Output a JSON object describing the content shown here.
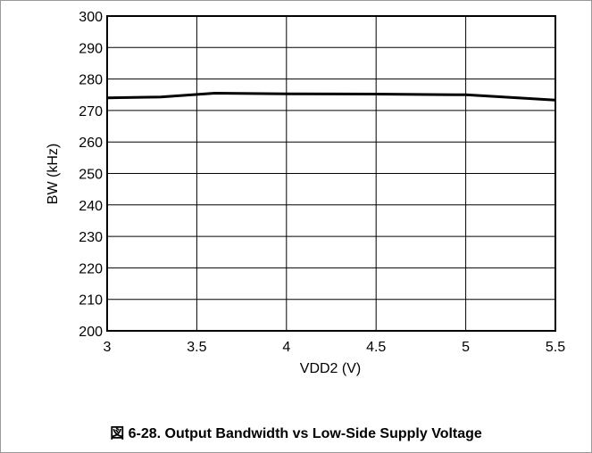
{
  "caption": "図 6-28. Output Bandwidth vs Low-Side Supply Voltage",
  "chart_data": {
    "type": "line",
    "title": "",
    "xlabel": "VDD2 (V)",
    "ylabel": "BW (kHz)",
    "xlim": [
      3,
      5.5
    ],
    "ylim": [
      200,
      300
    ],
    "x_ticks": [
      3,
      3.5,
      4,
      4.5,
      5,
      5.5
    ],
    "x_tick_labels": [
      "3",
      "3.5",
      "4",
      "4.5",
      "5",
      "5.5"
    ],
    "y_ticks": [
      200,
      210,
      220,
      230,
      240,
      250,
      260,
      270,
      280,
      290,
      300
    ],
    "y_tick_labels": [
      "200",
      "210",
      "220",
      "230",
      "240",
      "250",
      "260",
      "270",
      "280",
      "290",
      "300"
    ],
    "grid": true,
    "series": [
      {
        "color": "#000000",
        "x": [
          3.0,
          3.3,
          3.6,
          4.0,
          4.5,
          5.0,
          5.5
        ],
        "y": [
          274.0,
          274.3,
          275.5,
          275.3,
          275.2,
          275.0,
          273.3
        ]
      }
    ]
  }
}
